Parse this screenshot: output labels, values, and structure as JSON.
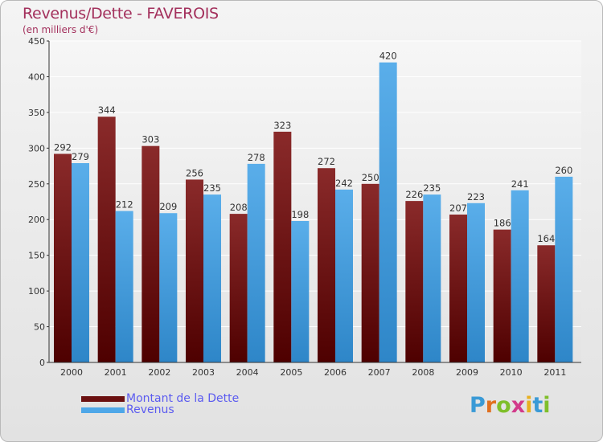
{
  "header": {
    "title": "Revenus/Dette - FAVEROIS",
    "subtitle": "(en milliers d'€)"
  },
  "logo": {
    "text": "Proxiti",
    "letter_colors": [
      "#3a9ad6",
      "#e07020",
      "#7fbf2a",
      "#d23a8a",
      "#e8b020",
      "#3a9ad6",
      "#7fbf2a"
    ]
  },
  "legend": [
    {
      "label": "Montant de la Dette",
      "color": "#6b1010"
    },
    {
      "label": "Revenus",
      "color": "#4ea7e8"
    }
  ],
  "chart_data": {
    "type": "bar",
    "title": "Revenus/Dette - FAVEROIS",
    "subtitle": "(en milliers d'€)",
    "categories": [
      "2000",
      "2001",
      "2002",
      "2003",
      "2004",
      "2005",
      "2006",
      "2007",
      "2008",
      "2009",
      "2010",
      "2011"
    ],
    "series": [
      {
        "name": "Montant de la Dette",
        "color": "#6b1010",
        "values": [
          292,
          344,
          303,
          256,
          208,
          323,
          272,
          250,
          226,
          207,
          186,
          164
        ]
      },
      {
        "name": "Revenus",
        "color": "#4ea7e8",
        "values": [
          279,
          212,
          209,
          235,
          278,
          198,
          242,
          420,
          235,
          223,
          241,
          260
        ]
      }
    ],
    "ylim": [
      0,
      450
    ],
    "yticks": [
      0,
      50,
      100,
      150,
      200,
      250,
      300,
      350,
      400,
      450
    ],
    "grid": true,
    "legend_position": "bottom-left"
  }
}
